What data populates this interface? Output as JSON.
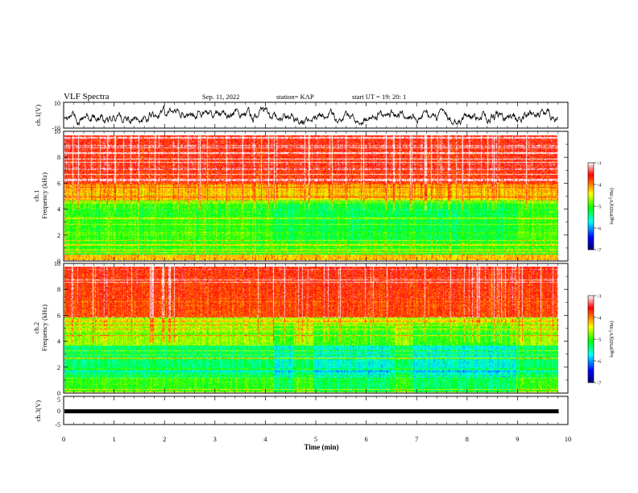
{
  "header": {
    "title": "VLF Spectra",
    "date": "Sep. 11, 2022",
    "station": "station= KAP",
    "start": "start  UT  =   19: 20: 1"
  },
  "chart_data": [
    {
      "type": "line",
      "panel": "ch1-waveform",
      "ylabel": "ch.1(V)",
      "ylim": [
        -10,
        10
      ],
      "yticks": [
        "10",
        "-10"
      ],
      "xlim": [
        0,
        10
      ],
      "color": "#000000"
    },
    {
      "type": "heatmap",
      "panel": "ch1-spectrogram",
      "ylabel": "ch.1\nFrequency  (kHz)",
      "ylim": [
        0,
        10
      ],
      "yticks": [
        "0",
        "2",
        "4",
        "6",
        "8",
        "10"
      ],
      "xlim": [
        0,
        10
      ],
      "data_end_min": 9.8,
      "colorbar": {
        "label": "log(PSD)(V²/Hz)",
        "range": [
          -7,
          -3
        ],
        "ticks": [
          "-3",
          "-4",
          "-5",
          "-6",
          "-7"
        ],
        "colors": [
          "#000070",
          "#0000ff",
          "#00ffff",
          "#00ff00",
          "#ffff00",
          "#ff0000",
          "#ffffff"
        ]
      },
      "bands": [
        {
          "from_khz": 0,
          "to_khz": 4.8,
          "dominant": "green"
        },
        {
          "from_khz": 4.8,
          "to_khz": 6,
          "dominant": "yellow"
        },
        {
          "from_khz": 6,
          "to_khz": 10,
          "dominant": "red"
        }
      ]
    },
    {
      "type": "heatmap",
      "panel": "ch2-spectrogram",
      "ylabel": "ch.2\nFrequency  (kHz)",
      "ylim": [
        0,
        10
      ],
      "yticks": [
        "0",
        "2",
        "4",
        "6",
        "8",
        "10"
      ],
      "xlim": [
        0,
        10
      ],
      "data_end_min": 9.8,
      "colorbar": {
        "label": "log(PSD)(V²/Hz)",
        "range": [
          -7,
          -3
        ],
        "ticks": [
          "-3",
          "-4",
          "-5",
          "-6",
          "-7"
        ],
        "colors": [
          "#000070",
          "#0000ff",
          "#00ffff",
          "#00ff00",
          "#ffff00",
          "#ff0000",
          "#ffffff"
        ]
      },
      "bands": [
        {
          "from_khz": 0,
          "to_khz": 3.8,
          "dominant": "cyan-green"
        },
        {
          "from_khz": 3.8,
          "to_khz": 6,
          "dominant": "green-yellow"
        },
        {
          "from_khz": 6,
          "to_khz": 10,
          "dominant": "red"
        }
      ]
    },
    {
      "type": "line",
      "panel": "ch3-waveform",
      "ylabel": "ch.3(V)",
      "ylim": [
        -5,
        5
      ],
      "yticks": [
        "5",
        "0",
        "-5"
      ],
      "xlim": [
        0,
        10
      ],
      "value_level": -0.3,
      "xlabel": "Time  (min)",
      "xticks": [
        "0",
        "1",
        "2",
        "3",
        "4",
        "5",
        "6",
        "7",
        "8",
        "9",
        "10"
      ]
    }
  ]
}
